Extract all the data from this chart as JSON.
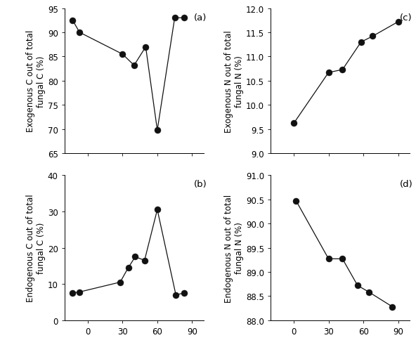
{
  "panel_a": {
    "x": [
      -13,
      -7,
      30,
      40,
      50,
      60,
      75,
      83
    ],
    "y": [
      92.5,
      90.0,
      85.5,
      83.2,
      87.0,
      69.8,
      93.0,
      93.0
    ],
    "ylabel": "Exogenous C out of total\nfungal C (%)",
    "label": "(a)",
    "ylim": [
      65,
      95
    ],
    "yticks": [
      65,
      70,
      75,
      80,
      85,
      90,
      95
    ],
    "xticks": [
      0,
      30,
      60,
      90
    ],
    "xlim": [
      -20,
      100
    ]
  },
  "panel_b": {
    "x": [
      -13,
      -7,
      28,
      35,
      41,
      49,
      60,
      76,
      83
    ],
    "y": [
      7.5,
      7.8,
      10.5,
      14.5,
      17.5,
      16.5,
      30.5,
      7.0,
      7.5
    ],
    "ylabel": "Endogenous C out of total\nfungal C (%)",
    "label": "(b)",
    "ylim": [
      0,
      40
    ],
    "yticks": [
      0,
      10,
      20,
      30,
      40
    ],
    "xticks": [
      0,
      30,
      60,
      90
    ],
    "xlim": [
      -20,
      100
    ]
  },
  "panel_c": {
    "x": [
      0,
      30,
      42,
      58,
      68,
      90
    ],
    "y": [
      9.62,
      10.67,
      10.73,
      11.3,
      11.42,
      11.72
    ],
    "ylabel": "Exogenous N out of total\nfungal N (%)",
    "label": "(c)",
    "ylim": [
      9.0,
      12.0
    ],
    "yticks": [
      9.0,
      9.5,
      10.0,
      10.5,
      11.0,
      11.5,
      12.0
    ],
    "xticks": [
      0,
      30,
      60,
      90
    ],
    "xlim": [
      -20,
      100
    ]
  },
  "panel_d": {
    "x": [
      2,
      30,
      42,
      55,
      65,
      85
    ],
    "y": [
      90.47,
      89.27,
      89.27,
      88.72,
      88.58,
      88.28
    ],
    "ylabel": "Endogenous N out of total\nfungal N (%)",
    "label": "(d)",
    "ylim": [
      88.0,
      91.0
    ],
    "yticks": [
      88.0,
      88.5,
      89.0,
      89.5,
      90.0,
      90.5,
      91.0
    ],
    "xticks": [
      0,
      30,
      60,
      90
    ],
    "xlim": [
      -20,
      100
    ]
  },
  "marker_color": "#111111",
  "marker_size": 6.5,
  "line_color": "#111111",
  "line_width": 0.9,
  "font_size": 8.5,
  "label_font_size": 9.5
}
